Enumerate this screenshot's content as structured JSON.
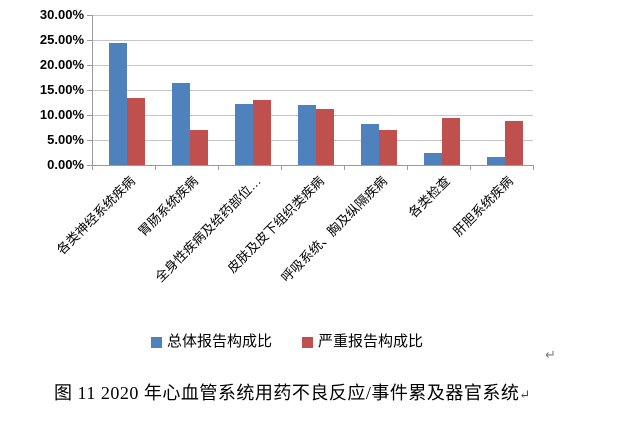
{
  "chart_data": {
    "type": "bar",
    "title": "",
    "categories": [
      "各类神经系统疾病",
      "胃肠系统疾病",
      "全身性疾病及给药部位…",
      "皮肤及皮下组织类疾病",
      "呼吸系统、胸及纵隔疾病",
      "各类检查",
      "肝胆系统疾病"
    ],
    "series": [
      {
        "name": "总体报告构成比",
        "color": "#4F81BD",
        "values": [
          24.5,
          16.4,
          12.2,
          12.0,
          8.3,
          2.4,
          1.6
        ]
      },
      {
        "name": "严重报告构成比",
        "color": "#C0504D",
        "values": [
          13.5,
          7.1,
          13.1,
          11.2,
          7.0,
          9.5,
          8.9
        ]
      }
    ],
    "xlabel": "",
    "ylabel": "",
    "ylim": [
      0,
      30
    ],
    "ytick_step": 5,
    "ytick_labels": [
      "30.00%",
      "25.00%",
      "20.00%",
      "15.00%",
      "10.00%",
      "5.00%",
      "0.00%"
    ],
    "grid": true,
    "legend_position": "bottom"
  },
  "decorations": {
    "return_mark_after_legend": "↵"
  },
  "caption": {
    "text": "图 11  2020 年心血管系统用药不良反应/事件累及器官系统",
    "return_mark": "↵"
  },
  "colors": {
    "series_total": "#4F81BD",
    "series_serious": "#C0504D",
    "gridline": "#C6C6C6",
    "axis": "#9B9B9B",
    "text": "#000000",
    "background": "#FFFFFF"
  }
}
